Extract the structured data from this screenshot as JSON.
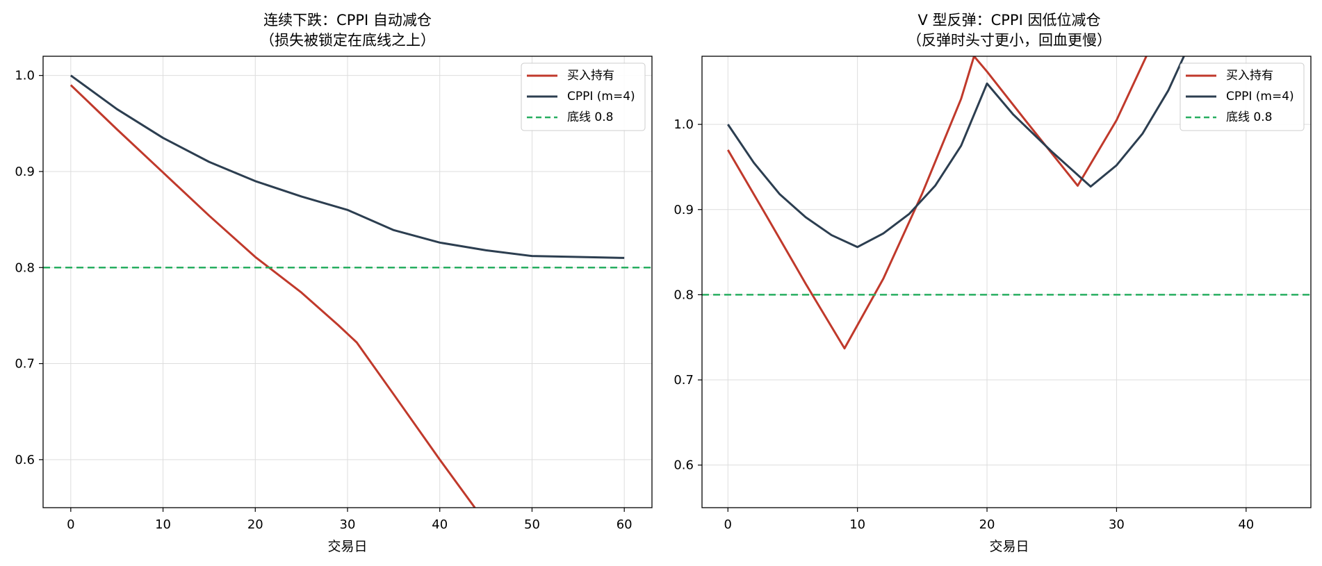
{
  "colors": {
    "buy_hold": "#c0392b",
    "cppi": "#2c3e50",
    "floor": "#27ae60",
    "grid": "#dddddd",
    "axis": "#000000"
  },
  "chart_data": [
    {
      "type": "line",
      "title_line1": "连续下跌：CPPI 自动减仓",
      "title_line2": "（损失被锁定在底线之上）",
      "xlabel": "交易日",
      "ylabel": "",
      "xlim": [
        -3,
        63
      ],
      "ylim": [
        0.55,
        1.02
      ],
      "xticks": [
        0,
        10,
        20,
        30,
        40,
        50,
        60
      ],
      "yticks": [
        0.6,
        0.7,
        0.8,
        0.9,
        1.0
      ],
      "grid": true,
      "legend_position": "top-right",
      "series": [
        {
          "name": "买入持有",
          "style": "solid",
          "points": [
            [
              0,
              0.99
            ],
            [
              5,
              0.944
            ],
            [
              10,
              0.899
            ],
            [
              15,
              0.854
            ],
            [
              20,
              0.811
            ],
            [
              25,
              0.774
            ],
            [
              29,
              0.74
            ],
            [
              31,
              0.722
            ],
            [
              35,
              0.668
            ],
            [
              40,
              0.6
            ],
            [
              43.8,
              0.55
            ]
          ]
        },
        {
          "name": "CPPI (m=4)",
          "style": "solid",
          "points": [
            [
              0,
              1.0
            ],
            [
              5,
              0.965
            ],
            [
              10,
              0.935
            ],
            [
              15,
              0.91
            ],
            [
              20,
              0.89
            ],
            [
              25,
              0.874
            ],
            [
              30,
              0.86
            ],
            [
              35,
              0.839
            ],
            [
              40,
              0.826
            ],
            [
              45,
              0.818
            ],
            [
              50,
              0.812
            ],
            [
              55,
              0.811
            ],
            [
              60,
              0.81
            ]
          ]
        },
        {
          "name": "底线 0.8",
          "style": "dashed",
          "points": [
            [
              -3,
              0.8
            ],
            [
              63,
              0.8
            ]
          ]
        }
      ]
    },
    {
      "type": "line",
      "title_line1": "V 型反弹：CPPI 因低位减仓",
      "title_line2": "（反弹时头寸更小，回血更慢）",
      "xlabel": "交易日",
      "ylabel": "",
      "xlim": [
        -2,
        45
      ],
      "ylim": [
        0.55,
        1.08
      ],
      "xticks": [
        0,
        10,
        20,
        30,
        40
      ],
      "yticks": [
        0.6,
        0.7,
        0.8,
        0.9,
        1.0
      ],
      "grid": true,
      "legend_position": "top-right",
      "series": [
        {
          "name": "买入持有",
          "style": "solid",
          "points": [
            [
              0,
              0.97
            ],
            [
              3,
              0.892
            ],
            [
              6,
              0.813
            ],
            [
              9,
              0.737
            ],
            [
              12,
              0.819
            ],
            [
              15,
              0.919
            ],
            [
              18,
              1.03
            ],
            [
              19,
              1.08
            ],
            [
              20,
              1.062
            ],
            [
              23,
              1.004
            ],
            [
              27,
              0.928
            ],
            [
              30,
              1.005
            ],
            [
              32.3,
              1.08
            ]
          ]
        },
        {
          "name": "CPPI (m=4)",
          "style": "solid",
          "points": [
            [
              0,
              1.0
            ],
            [
              2,
              0.955
            ],
            [
              4,
              0.918
            ],
            [
              6,
              0.891
            ],
            [
              8,
              0.87
            ],
            [
              10,
              0.856
            ],
            [
              12,
              0.872
            ],
            [
              14,
              0.895
            ],
            [
              16,
              0.928
            ],
            [
              18,
              0.975
            ],
            [
              20,
              1.048
            ],
            [
              22,
              1.012
            ],
            [
              25,
              0.968
            ],
            [
              28,
              0.927
            ],
            [
              30,
              0.952
            ],
            [
              32,
              0.989
            ],
            [
              34,
              1.04
            ],
            [
              35.2,
              1.08
            ]
          ]
        },
        {
          "name": "底线 0.8",
          "style": "dashed",
          "points": [
            [
              -2,
              0.8
            ],
            [
              45,
              0.8
            ]
          ]
        }
      ]
    }
  ]
}
